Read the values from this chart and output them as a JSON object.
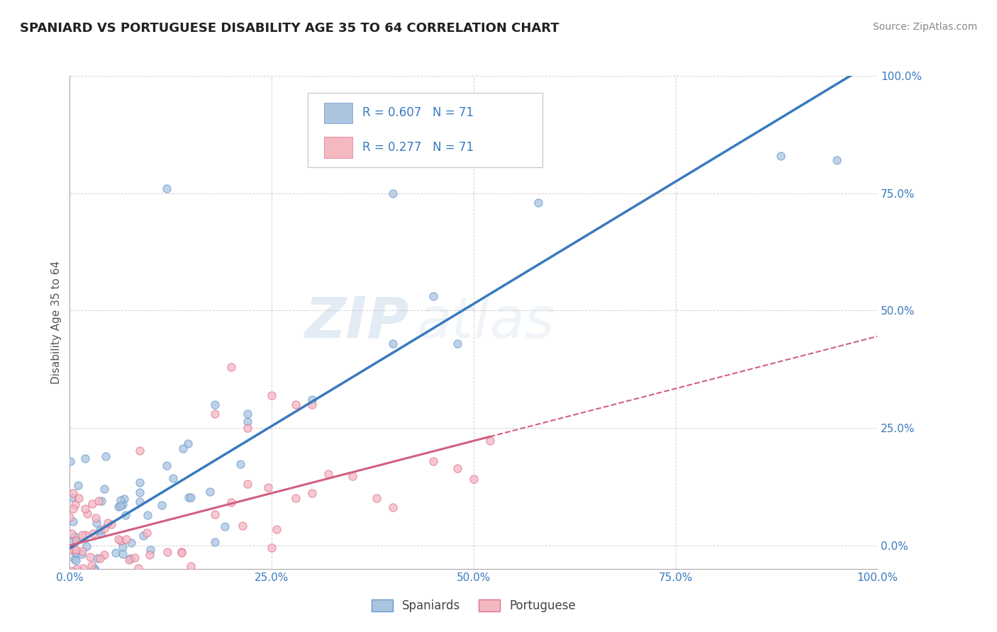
{
  "title": "SPANIARD VS PORTUGUESE DISABILITY AGE 35 TO 64 CORRELATION CHART",
  "source": "Source: ZipAtlas.com",
  "ylabel": "Disability Age 35 to 64",
  "xmin": 0.0,
  "xmax": 1.0,
  "ymin": -0.05,
  "ymax": 1.0,
  "xtick_vals": [
    0.0,
    0.25,
    0.5,
    0.75,
    1.0
  ],
  "ytick_vals": [
    0.0,
    0.25,
    0.5,
    0.75,
    1.0
  ],
  "spaniard_color": "#aac4e0",
  "spaniard_edge_color": "#6699cc",
  "portuguese_color": "#f4b8c1",
  "portuguese_edge_color": "#e07090",
  "spaniard_line_color": "#3a7abf",
  "portuguese_line_color": "#d06080",
  "legend_r1": "0.607",
  "legend_n1": "71",
  "legend_r2": "0.277",
  "legend_n2": "71",
  "legend_label1": "Spaniards",
  "legend_label2": "Portuguese",
  "watermark_zip": "ZIP",
  "watermark_atlas": "atlas",
  "title_color": "#222222",
  "source_color": "#888888",
  "label_color": "#3a7abf",
  "tick_color": "#3a7abf"
}
